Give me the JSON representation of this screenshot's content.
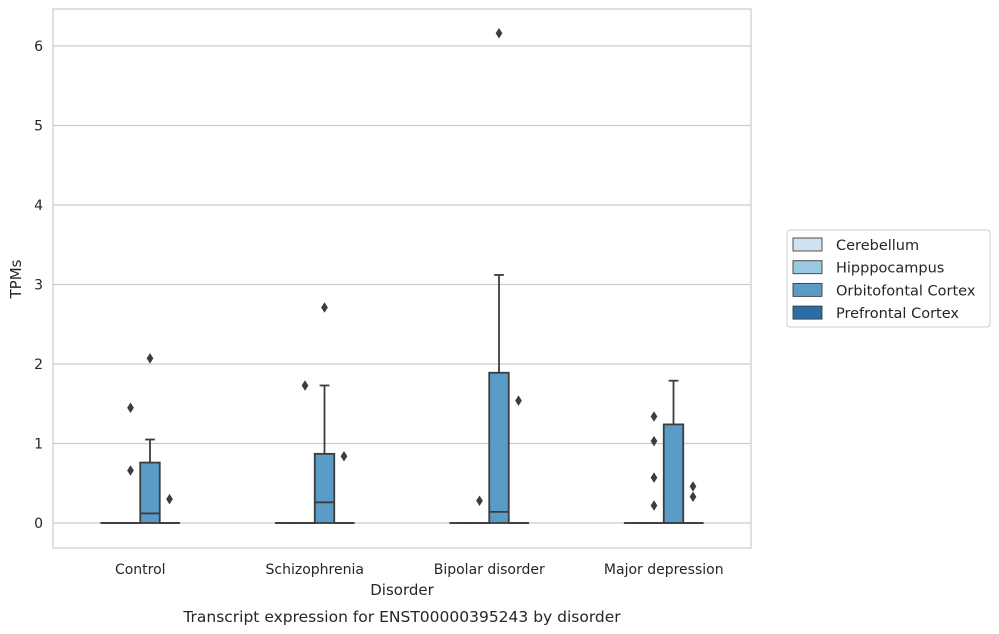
{
  "chart_data": {
    "type": "box",
    "title": "",
    "caption": "Transcript expression for ENST00000395243 by disorder",
    "xlabel": "Disorder",
    "ylabel": "TPMs",
    "ylim": [
      -0.3,
      6.5
    ],
    "yticks": [
      "0",
      "1",
      "2",
      "3",
      "4",
      "5",
      "6"
    ],
    "grid": "horizontal",
    "legend_position": "right",
    "categories": [
      "Control",
      "Schizophrenia",
      "Bipolar disorder",
      "Major depression"
    ],
    "series": [
      {
        "name": "Cerebellum",
        "color": "#d0e1f2",
        "boxes": [
          {
            "q1": 0,
            "median": 0,
            "q3": 0,
            "whisker_low": 0,
            "whisker_high": 0,
            "outliers": []
          },
          {
            "q1": 0,
            "median": 0,
            "q3": 0,
            "whisker_low": 0,
            "whisker_high": 0,
            "outliers": []
          },
          {
            "q1": 0,
            "median": 0,
            "q3": 0,
            "whisker_low": 0,
            "whisker_high": 0,
            "outliers": []
          },
          {
            "q1": 0,
            "median": 0,
            "q3": 0,
            "whisker_low": 0,
            "whisker_high": 0,
            "outliers": []
          }
        ]
      },
      {
        "name": "Hipppocampus",
        "color": "#9ac8e0",
        "boxes": [
          {
            "q1": 0,
            "median": 0,
            "q3": 0,
            "whisker_low": 0,
            "whisker_high": 0,
            "outliers": [
              0.66,
              1.45
            ]
          },
          {
            "q1": 0,
            "median": 0,
            "q3": 0,
            "whisker_low": 0,
            "whisker_high": 0,
            "outliers": [
              1.73
            ]
          },
          {
            "q1": 0,
            "median": 0,
            "q3": 0,
            "whisker_low": 0,
            "whisker_high": 0,
            "outliers": [
              0.28
            ]
          },
          {
            "q1": 0,
            "median": 0,
            "q3": 0,
            "whisker_low": 0,
            "whisker_high": 0,
            "outliers": [
              0.22,
              0.57,
              1.03,
              1.34
            ]
          }
        ]
      },
      {
        "name": "Orbitofontal Cortex",
        "color": "#5a9bc7",
        "boxes": [
          {
            "q1": 0,
            "median": 0.12,
            "q3": 0.76,
            "whisker_low": 0,
            "whisker_high": 1.05,
            "outliers": [
              2.07
            ]
          },
          {
            "q1": 0,
            "median": 0.26,
            "q3": 0.87,
            "whisker_low": 0,
            "whisker_high": 1.73,
            "outliers": [
              2.71
            ]
          },
          {
            "q1": 0,
            "median": 0.14,
            "q3": 1.89,
            "whisker_low": 0,
            "whisker_high": 3.12,
            "outliers": [
              6.16
            ]
          },
          {
            "q1": 0,
            "median": 0,
            "q3": 1.24,
            "whisker_low": 0,
            "whisker_high": 1.79,
            "outliers": []
          }
        ]
      },
      {
        "name": "Prefrontal Cortex",
        "color": "#2c6ca8",
        "boxes": [
          {
            "q1": 0,
            "median": 0,
            "q3": 0,
            "whisker_low": 0,
            "whisker_high": 0,
            "outliers": [
              0.3
            ]
          },
          {
            "q1": 0,
            "median": 0,
            "q3": 0,
            "whisker_low": 0,
            "whisker_high": 0,
            "outliers": [
              0.84
            ]
          },
          {
            "q1": 0,
            "median": 0,
            "q3": 0,
            "whisker_low": 0,
            "whisker_high": 0,
            "outliers": [
              1.54
            ]
          },
          {
            "q1": 0,
            "median": 0,
            "q3": 0,
            "whisker_low": 0,
            "whisker_high": 0,
            "outliers": [
              0.33,
              0.46
            ]
          }
        ]
      }
    ]
  }
}
